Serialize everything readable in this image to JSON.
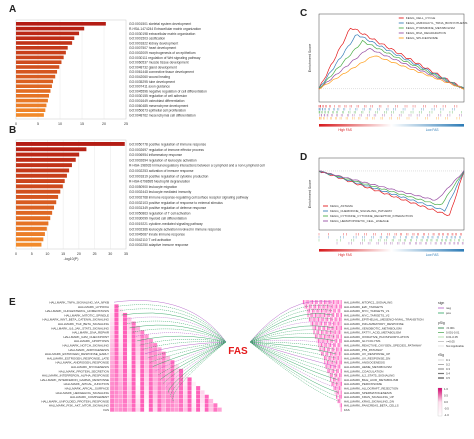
{
  "panels": {
    "a": {
      "letter": "A",
      "xlabel": "-log10(P)",
      "ticks": [
        "0",
        "5",
        "10",
        "15",
        "20",
        "25"
      ],
      "terms": [
        "GO:0001501 skeletal system development",
        "R-HSA-1474244 Extracellular matrix organization",
        "GO:0030198 extracellular matrix organization",
        "GO:0001503 ossification",
        "GO:0001822 kidney development",
        "GO:0007507 heart development",
        "GO:0002009 morphogenesis of an epithelium",
        "GO:0030111 regulation of Wnt signaling pathway",
        "GO:0060537 muscle tissue development",
        "GO:0048732 gland development",
        "GO:0061448 connective tissue development",
        "GO:0042060 wound healing",
        "GO:0035295 tube development",
        "GO:0007411 axon guidance",
        "GO:0045596 negative regulation of cell differentiation",
        "GO:0030155 regulation of cell adhesion",
        "GO:0001649 osteoblast differentiation",
        "GO:0060485 mesenchyme development",
        "GO:0050673 epithelial cell proliferation",
        "GO:0048762 mesenchymal cell differentiation"
      ],
      "values": [
        24.5,
        18.6,
        17.2,
        15.9,
        15.3,
        14.1,
        13.6,
        13.0,
        12.4,
        11.8,
        11.2,
        10.7,
        10.1,
        9.8,
        9.4,
        9.0,
        8.7,
        8.3,
        8.0,
        7.6
      ]
    },
    "b": {
      "letter": "B",
      "xlabel": "-log10(P)",
      "ticks": [
        "0",
        "5",
        "10",
        "15",
        "20",
        "25",
        "30",
        "35"
      ],
      "terms": [
        "GO:0050778 positive regulation of immune response",
        "GO:0002697 regulation of immune effector process",
        "GO:0006954 inflammatory response",
        "GO:0002694 regulation of leukocyte activation",
        "R-HSA-198933 Immunoregulatory interactions between a Lymphoid and a non-Lymphoid cell",
        "GO:0002253 activation of immune response",
        "GO:0001819 positive regulation of cytokine production",
        "R-HSA-6798695 Neutrophil degranulation",
        "GO:0050900 leukocyte migration",
        "GO:0002443 leukocyte mediated immunity",
        "GO:0002768 immune response-regulating cell surface receptor signaling pathway",
        "GO:0032103 positive regulation of response to external stimulus",
        "GO:0031349 positive regulation of defense response",
        "GO:0050863 regulation of T cell activation",
        "GO:0030099 myeloid cell differentiation",
        "GO:0019221 cytokine-mediated signaling pathway",
        "GO:0002366 leukocyte activation involved in immune response",
        "GO:0045087 innate immune response",
        "GO:0042110 T cell activation",
        "GO:0002250 adaptive immune response"
      ],
      "values": [
        34.6,
        22.4,
        20.1,
        19.0,
        17.8,
        16.9,
        16.2,
        15.5,
        14.9,
        14.1,
        13.4,
        12.8,
        12.1,
        11.5,
        10.9,
        10.3,
        9.8,
        9.2,
        8.7,
        8.1
      ]
    },
    "c": {
      "letter": "C",
      "ylabel": "Enrichment Score",
      "legend": [
        "KEGG_CELL_CYCLE",
        "KEGG_AMINOACYL_TRNA_BIOSYNTHESIS",
        "KEGG_PYRIMIDINE_METABOLISM",
        "KEGG_RNA_DEGRADATION",
        "KEGG_SPLICEOSOME"
      ],
      "colors": [
        "#e41a1c",
        "#377eb8",
        "#4daf4a",
        "#984ea3",
        "#ff9f1c"
      ],
      "high_label": "High FAS",
      "low_label": "Low FAS"
    },
    "d": {
      "letter": "D",
      "ylabel": "Enrichment Score",
      "legend": [
        "KEGG_ASTHMA",
        "KEGG_CHEMOKINE_SIGNALING_PATHWAY",
        "KEGG_CYTOKINE_CYTOKINE_RECEPTOR_INTERACTION",
        "KEGG_HEMATOPOIETIC_CELL_LINEAGE"
      ],
      "colors": [
        "#e41a1c",
        "#377eb8",
        "#4daf4a",
        "#984ea3"
      ],
      "high_label": "High FAS",
      "low_label": "Low FAS"
    },
    "e": {
      "letter": "E",
      "center_label": "FAS",
      "left_terms": [
        "HALLMARK_TNFA_SIGNALING_VIA_NFKB",
        "HALLMARK_HYPOXIA",
        "HALLMARK_CHOLESTEROL_HOMEOSTASIS",
        "HALLMARK_MITOTIC_SPINDLE",
        "HALLMARK_WNT_BETA_CATENIN_SIGNALING",
        "HALLMARK_TGF_BETA_SIGNALING",
        "HALLMARK_IL6_JAK_STAT3_SIGNALING",
        "HALLMARK_DNA_REPAIR",
        "HALLMARK_G2M_CHECKPOINT",
        "HALLMARK_APOPTOSIS",
        "HALLMARK_NOTCH_SIGNALING",
        "HALLMARK_ADIPOGENESIS",
        "HALLMARK_ESTROGEN_RESPONSE_EARLY",
        "HALLMARK_ESTROGEN_RESPONSE_LATE",
        "HALLMARK_ANDROGEN_RESPONSE",
        "HALLMARK_MYOGENESIS",
        "HALLMARK_PROTEIN_SECRETION",
        "HALLMARK_INTERFERON_ALPHA_RESPONSE",
        "HALLMARK_INTERFERON_GAMMA_RESPONSE",
        "HALLMARK_APICAL_JUNCTION",
        "HALLMARK_APICAL_SURFACE",
        "HALLMARK_HEDGEHOG_SIGNALING",
        "HALLMARK_COMPLEMENT",
        "HALLMARK_UNFOLDED_PROTEIN_RESPONSE",
        "HALLMARK_PI3K_AKT_MTOR_SIGNALING",
        "FAS"
      ],
      "right_terms": [
        "HALLMARK_MTORC1_SIGNALING",
        "HALLMARK_E2F_TARGETS",
        "HALLMARK_MYC_TARGETS_V1",
        "HALLMARK_MYC_TARGETS_V2",
        "HALLMARK_EPITHELIAL_MESENCHYMAL_TRANSITION",
        "HALLMARK_INFLAMMATORY_RESPONSE",
        "HALLMARK_XENOBIOTIC_METABOLISM",
        "HALLMARK_FATTY_ACID_METABOLISM",
        "HALLMARK_OXIDATIVE_PHOSPHORYLATION",
        "HALLMARK_GLYCOLYSIS",
        "HALLMARK_REACTIVE_OXYGEN_SPECIES_PATHWAY",
        "HALLMARK_P53_PATHWAY",
        "HALLMARK_UV_RESPONSE_UP",
        "HALLMARK_UV_RESPONSE_DN",
        "HALLMARK_ANGIOGENESIS",
        "HALLMARK_HEME_METABOLISM",
        "HALLMARK_COAGULATION",
        "HALLMARK_IL2_STAT5_SIGNALING",
        "HALLMARK_BILE_ACID_METABOLISM",
        "HALLMARK_PEROXISOME",
        "HALLMARK_ALLOGRAFT_REJECTION",
        "HALLMARK_SPERMATOGENESIS",
        "HALLMARK_KRAS_SIGNALING_UP",
        "HALLMARK_KRAS_SIGNALING_DN",
        "HALLMARK_PANCREAS_BETA_CELLS",
        "FAS"
      ],
      "legend_sign_title": "sign",
      "legend_sign_items": [
        "neg",
        "pos"
      ],
      "legend_p_title": "pSig",
      "legend_p_items": [
        "<0.001",
        "0.001-0.01",
        "0.01-0.05",
        ">=0.05",
        "Not Applicable"
      ],
      "legend_r_title": "rSig",
      "legend_r_items": [
        "0.1",
        "0.2",
        "0.3",
        "0.4",
        "0.5"
      ],
      "legend_corr_items": [
        "1.0",
        "0.5",
        "0.0",
        "-0.5",
        "-1.0"
      ]
    }
  }
}
